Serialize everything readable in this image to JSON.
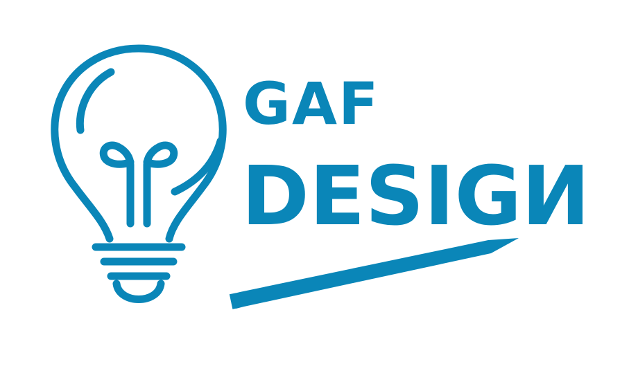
{
  "brand": {
    "line1": "GAF",
    "line2_main": "DESIG",
    "line2_last": "N",
    "accent_color": "#0a86b8"
  },
  "graphics": {
    "bulb": "lightbulb-icon",
    "pencil": "pencil-icon"
  }
}
